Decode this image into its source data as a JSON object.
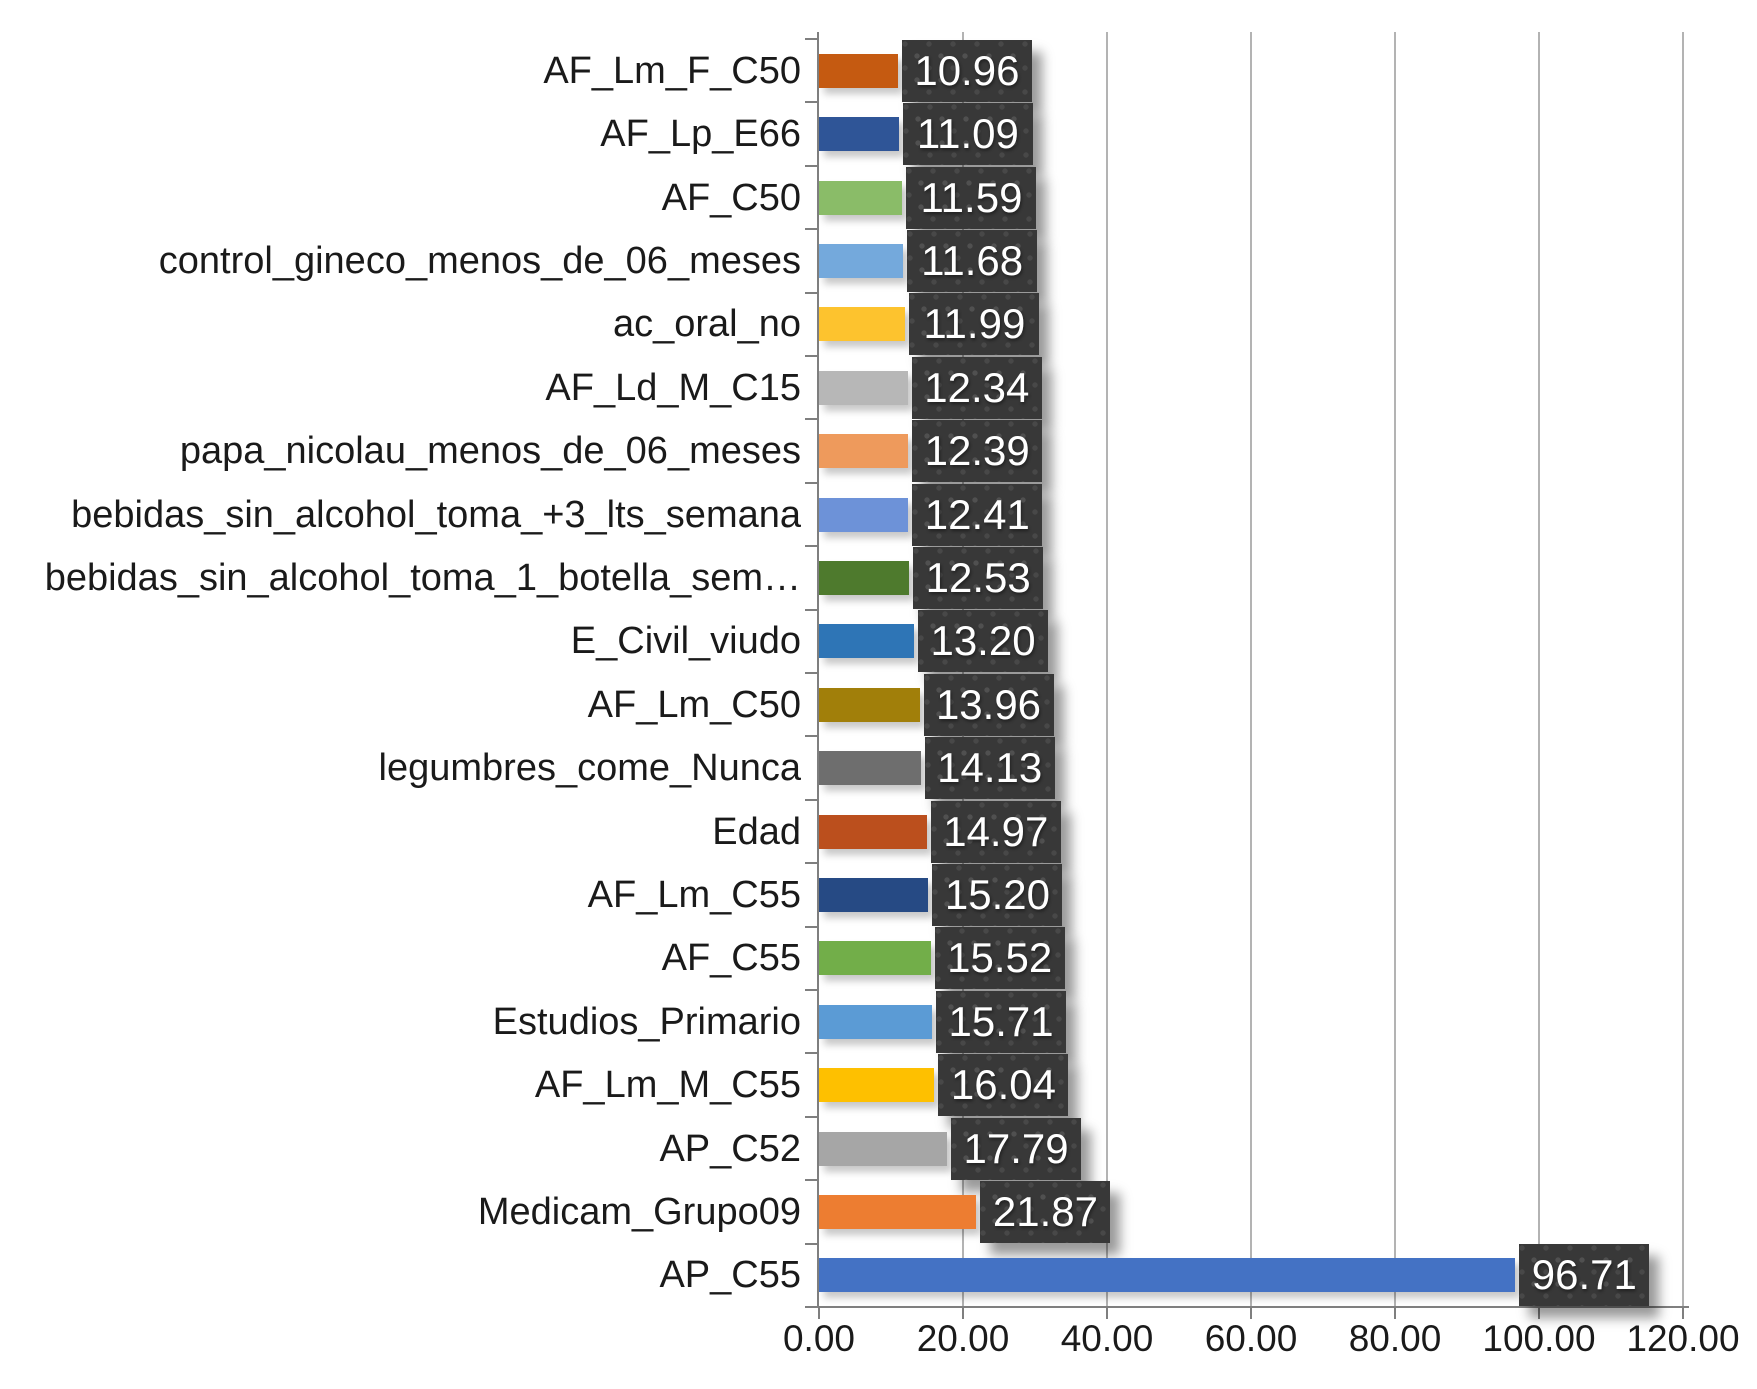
{
  "chart_data": {
    "type": "bar",
    "orientation": "horizontal",
    "title": "",
    "xlabel": "",
    "ylabel": "",
    "xlim": [
      0,
      120
    ],
    "grid": true,
    "x_tick_labels": [
      "0.00",
      "20.00",
      "40.00",
      "60.00",
      "80.00",
      "100.00",
      "120.00"
    ],
    "x_tick_values": [
      0,
      20,
      40,
      60,
      80,
      100,
      120
    ],
    "categories": [
      "AF_Lm_F_C50",
      "AF_Lp_E66",
      "AF_C50",
      "control_gineco_menos_de_06_meses",
      "ac_oral_no",
      "AF_Ld_M_C15",
      "papa_nicolau_menos_de_06_meses",
      "bebidas_sin_alcohol_toma_+3_lts_semana",
      "bebidas_sin_alcohol_toma_1_botella_sem…",
      "E_Civil_viudo",
      "AF_Lm_C50",
      "legumbres_come_Nunca",
      "Edad",
      "AF_Lm_C55",
      "AF_C55",
      "Estudios_Primario",
      "AF_Lm_M_C55",
      "AP_C52",
      "Medicam_Grupo09",
      "AP_C55"
    ],
    "values": [
      10.96,
      11.09,
      11.59,
      11.68,
      11.99,
      12.34,
      12.39,
      12.41,
      12.53,
      13.2,
      13.96,
      14.13,
      14.97,
      15.2,
      15.52,
      15.71,
      16.04,
      17.79,
      21.87,
      96.71
    ],
    "data_labels": [
      "10.96",
      "11.09",
      "11.59",
      "11.68",
      "11.99",
      "12.34",
      "12.39",
      "12.41",
      "12.53",
      "13.20",
      "13.96",
      "14.13",
      "14.97",
      "15.20",
      "15.52",
      "15.71",
      "16.04",
      "17.79",
      "21.87",
      "96.71"
    ],
    "bar_colors": [
      "#c55a11",
      "#2f5597",
      "#8abc68",
      "#74a9dc",
      "#fdc32e",
      "#b7b7b7",
      "#ee9a5c",
      "#6d92d8",
      "#4e7a2d",
      "#2e75b6",
      "#a17f0a",
      "#6e6e6e",
      "#bb4f1d",
      "#264a84",
      "#72ae49",
      "#5b9bd5",
      "#fec000",
      "#a6a6a6",
      "#ed7d31",
      "#4472c4"
    ],
    "legend_position": "none",
    "data_label_style": {
      "box_color": "#383838",
      "text_color": "#ffffff",
      "pattern": "dotted-grid"
    },
    "gridline_color": "#b3b3b3",
    "axis_color": "#7f7f7f"
  }
}
